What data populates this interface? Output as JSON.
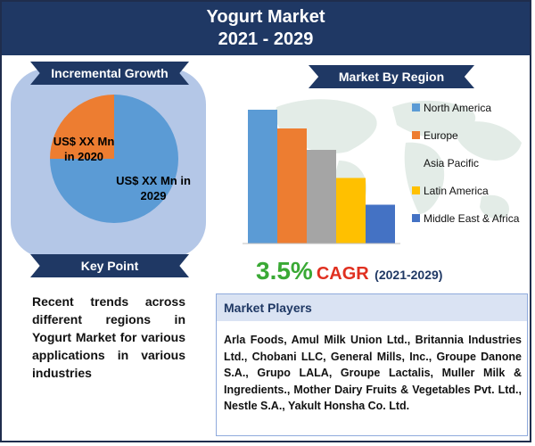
{
  "header": {
    "title": "Yogurt Market",
    "period": "2021 - 2029"
  },
  "growth": {
    "title": "Incremental Growth",
    "label_2020": "US$ XX Mn\nin 2020",
    "label_2029": "US$ XX Mn in\n2029"
  },
  "key_point": {
    "title": "Key Point",
    "text": "Recent trends across different regions in Yogurt Market for various applications in various industries"
  },
  "region": {
    "title": "Market By Region"
  },
  "cagr": {
    "value": "3.5%",
    "label": "CAGR",
    "period": "(2021-2029)"
  },
  "players": {
    "title": "Market Players",
    "text": "Arla Foods, Amul Milk Union Ltd., Britannia Industries Ltd., Chobani LLC, General Mills, Inc., Groupe Danone S.A., Grupo LALA, Groupe Lactalis, Muller Milk & Ingredients., Mother Dairy Fruits & Vegetables Pvt. Ltd., Nestle S.A., Yakult Honsha Co. Ltd."
  },
  "colors": {
    "navy": "#1f3864",
    "panel": "#b4c7e7",
    "pie_2029": "#5b9bd5",
    "pie_2020": "#ed7d31",
    "cagr_green": "#3aa935",
    "cagr_red": "#e03020"
  },
  "chart_data": [
    {
      "type": "pie",
      "slices": [
        {
          "label": "US$ XX Mn in 2029",
          "value": 75,
          "color": "#5b9bd5"
        },
        {
          "label": "US$ XX Mn in 2020",
          "value": 25,
          "color": "#ed7d31"
        }
      ]
    },
    {
      "type": "bar",
      "categories": [
        "North America",
        "Europe",
        "Asia Pacific",
        "Latin America",
        "Middle East & Africa"
      ],
      "values": [
        100,
        86,
        70,
        49,
        29
      ],
      "colors": [
        "#5b9bd5",
        "#ed7d31",
        "#a5a5a5",
        "#ffc000",
        "#4472c4"
      ],
      "legend": "right",
      "ylim": [
        0,
        100
      ]
    }
  ]
}
